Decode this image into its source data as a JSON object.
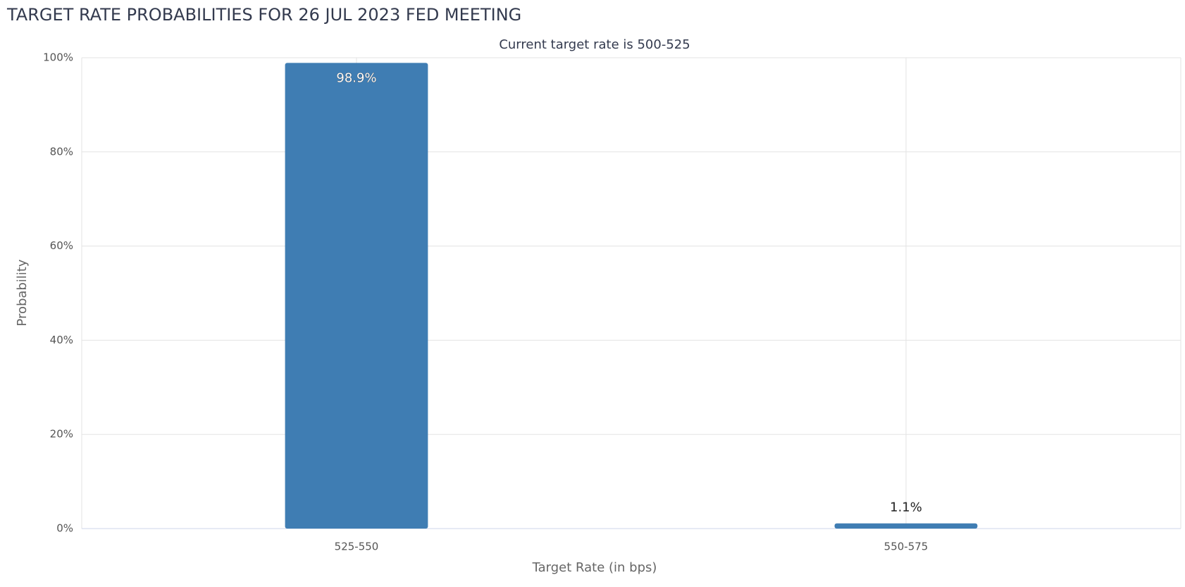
{
  "chart_data": {
    "type": "bar",
    "title": "TARGET RATE PROBABILITIES FOR 26 JUL 2023 FED MEETING",
    "subtitle": "Current target rate is 500-525",
    "x_label": "Target Rate (in bps)",
    "y_label": "Probability",
    "categories": [
      "525-550",
      "550-575"
    ],
    "values": [
      98.9,
      1.1
    ],
    "value_labels": [
      "98.9%",
      "1.1%"
    ],
    "color": "#3f7db3",
    "ylim": [
      0,
      100
    ],
    "yticks": [
      {
        "value": 0,
        "label": "0%"
      },
      {
        "value": 20,
        "label": "20%"
      },
      {
        "value": 40,
        "label": "40%"
      },
      {
        "value": 60,
        "label": "60%"
      },
      {
        "value": 80,
        "label": "80%"
      },
      {
        "value": 100,
        "label": "100%"
      }
    ],
    "grid": true
  }
}
